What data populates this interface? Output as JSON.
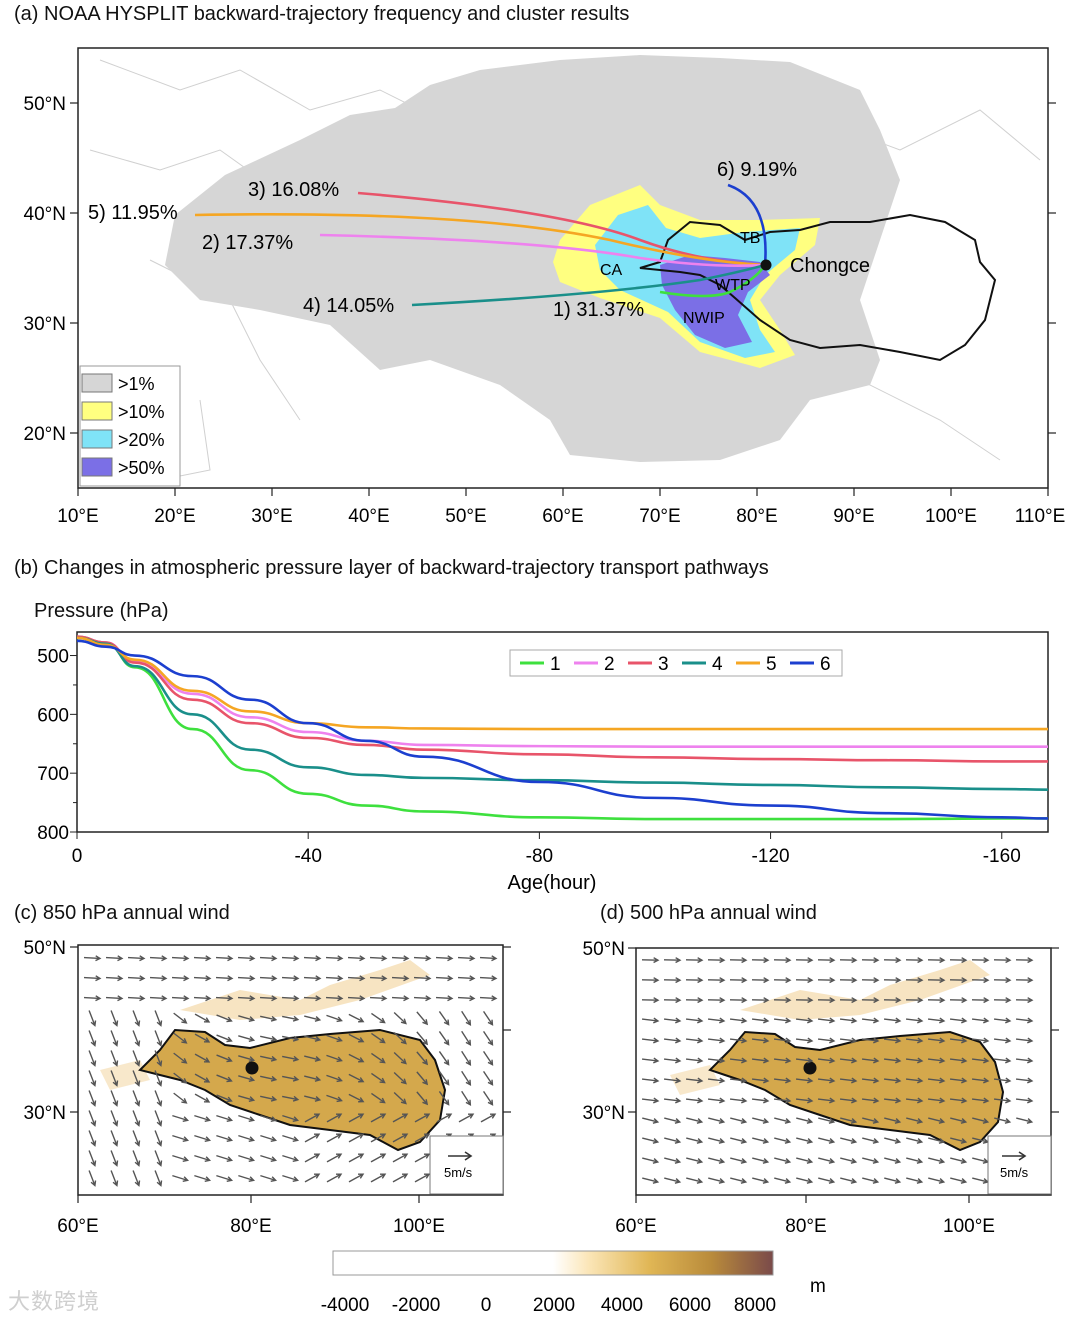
{
  "watermark": "大数跨境",
  "colors": {
    "c1": "#3ee03e",
    "c2": "#ee82ee",
    "c3": "#e8546a",
    "c4": "#1a8f8a",
    "c5": "#f5a623",
    "c6": "#1c3fcf",
    "freq1": "#d6d6d6",
    "freq10": "#ffff80",
    "freq20": "#7fe3f7",
    "freq50": "#7b6fe6"
  },
  "panel_a": {
    "title": "(a) NOAA HYSPLIT backward-trajectory frequency and cluster results",
    "x_ticks": [
      "10°E",
      "20°E",
      "30°E",
      "40°E",
      "50°E",
      "60°E",
      "70°E",
      "80°E",
      "90°E",
      "100°E",
      "110°E"
    ],
    "y_ticks": [
      "20°N",
      "30°N",
      "40°N",
      "50°N"
    ],
    "legend": [
      ">1%",
      ">10%",
      ">20%",
      ">50%"
    ],
    "region_labels": [
      "TB",
      "CA",
      "WTP",
      "NWIP"
    ],
    "site_label": "Chongce",
    "cluster_labels": [
      {
        "id": 6,
        "text": "6) 9.19%"
      },
      {
        "id": 3,
        "text": "3) 16.08%"
      },
      {
        "id": 5,
        "text": "5) 11.95%"
      },
      {
        "id": 2,
        "text": "2) 17.37%"
      },
      {
        "id": 4,
        "text": "4) 14.05%"
      },
      {
        "id": 1,
        "text": "1) 31.37%"
      }
    ]
  },
  "panel_b": {
    "title": "(b) Changes in atmospheric pressure layer of backward-trajectory transport pathways",
    "ylabel": "Pressure (hPa)",
    "xlabel": "Age(hour)"
  },
  "panel_c": {
    "title": "(c) 850 hPa annual wind",
    "x_ticks": [
      "60°E",
      "80°E",
      "100°E"
    ],
    "y_ticks": [
      "50°N",
      "30°N"
    ],
    "scale_label": "5m/s"
  },
  "panel_d": {
    "title": "(d) 500 hPa annual wind",
    "x_ticks": [
      "60°E",
      "80°E",
      "100°E"
    ],
    "y_ticks": [
      "50°N",
      "30°N"
    ],
    "scale_label": "5m/s"
  },
  "colorbar": {
    "ticks": [
      "-4000",
      "-2000",
      "0",
      "2000",
      "4000",
      "6000",
      "8000"
    ],
    "unit": "m"
  },
  "chart_data": [
    {
      "type": "line",
      "title": "(b) Changes in atmospheric pressure layer of backward-trajectory transport pathways",
      "xlabel": "Age(hour)",
      "ylabel": "Pressure (hPa)",
      "xlim": [
        0,
        -168
      ],
      "ylim": [
        460,
        800
      ],
      "x_ticks": [
        0,
        -40,
        -80,
        -120,
        -160
      ],
      "y_ticks": [
        500,
        600,
        700,
        800
      ],
      "legend": [
        "1",
        "2",
        "3",
        "4",
        "5",
        "6"
      ],
      "x": [
        0,
        -5,
        -10,
        -20,
        -30,
        -40,
        -50,
        -60,
        -80,
        -100,
        -120,
        -140,
        -160,
        -168
      ],
      "series": [
        {
          "name": "1",
          "values": [
            468,
            478,
            520,
            625,
            695,
            735,
            755,
            765,
            775,
            778,
            778,
            778,
            777,
            777
          ]
        },
        {
          "name": "2",
          "values": [
            468,
            478,
            510,
            565,
            605,
            630,
            645,
            652,
            654,
            655,
            655,
            655,
            655,
            655
          ]
        },
        {
          "name": "3",
          "values": [
            468,
            478,
            512,
            575,
            615,
            640,
            652,
            660,
            668,
            673,
            676,
            678,
            680,
            680
          ]
        },
        {
          "name": "4",
          "values": [
            470,
            480,
            518,
            600,
            660,
            690,
            703,
            708,
            712,
            716,
            720,
            724,
            727,
            728
          ]
        },
        {
          "name": "5",
          "values": [
            470,
            482,
            507,
            560,
            595,
            615,
            622,
            624,
            625,
            625,
            625,
            625,
            625,
            625
          ]
        },
        {
          "name": "6",
          "values": [
            475,
            485,
            500,
            535,
            575,
            615,
            645,
            672,
            715,
            742,
            755,
            768,
            775,
            777
          ]
        }
      ]
    }
  ]
}
